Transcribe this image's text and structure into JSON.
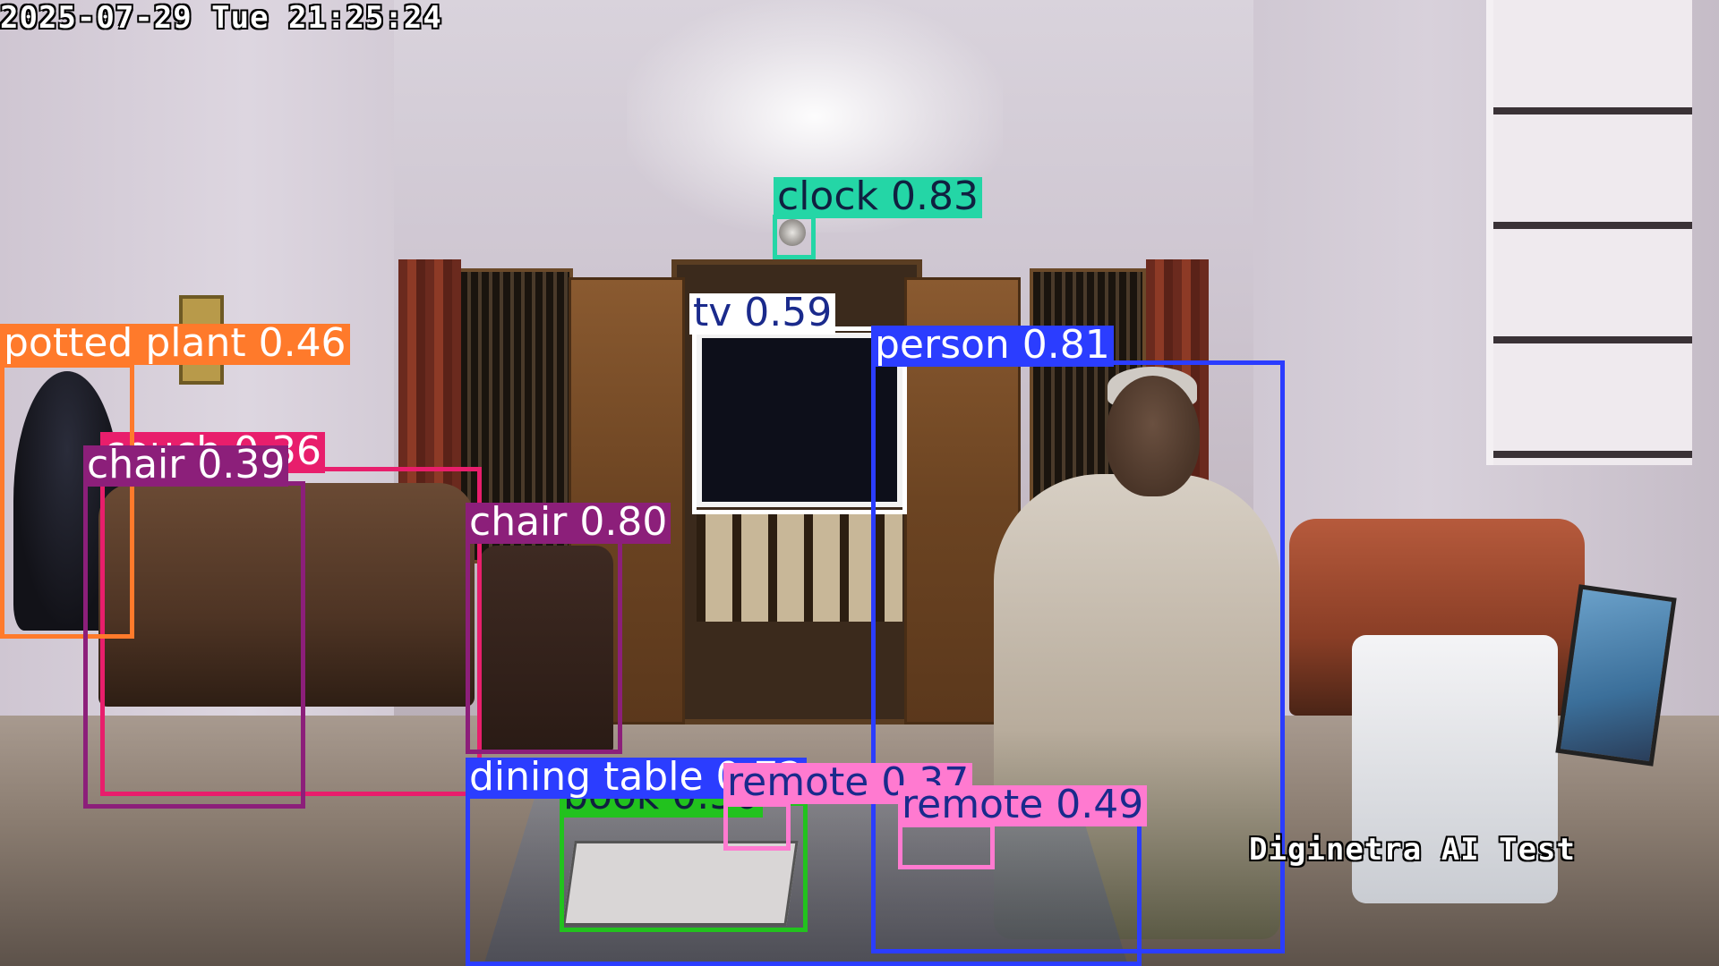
{
  "overlay": {
    "timestamp": "2025-07-29 Tue 21:25:24",
    "watermark": "Diginetra AI Test"
  },
  "detections": [
    {
      "label": "couch 0.36",
      "color": "#e81e6c",
      "text_color": "#ffffff"
    },
    {
      "label": "potted plant 0.46",
      "color": "#ff7a2b",
      "text_color": "#ffffff"
    },
    {
      "label": "chair 0.39",
      "color": "#8c1f7a",
      "text_color": "#ffffff"
    },
    {
      "label": "clock 0.83",
      "color": "#24d6a6",
      "text_color": "#102040"
    },
    {
      "label": "tv 0.59",
      "color": "#ffffff",
      "text_color": "#1a2a8c"
    },
    {
      "label": "person 0.81",
      "color": "#2b3dff",
      "text_color": "#ffffff"
    },
    {
      "label": "chair 0.80",
      "color": "#8c1f7a",
      "text_color": "#ffffff"
    },
    {
      "label": "book 0.50",
      "color": "#22c21e",
      "text_color": "#102040"
    },
    {
      "label": "dining table 0.72",
      "color": "#2b3dff",
      "text_color": "#ffffff"
    },
    {
      "label": "remote 0.37",
      "color": "#ff7ad0",
      "text_color": "#1a2a8c"
    },
    {
      "label": "remote 0.49",
      "color": "#ff7ad0",
      "text_color": "#1a2a8c"
    }
  ]
}
